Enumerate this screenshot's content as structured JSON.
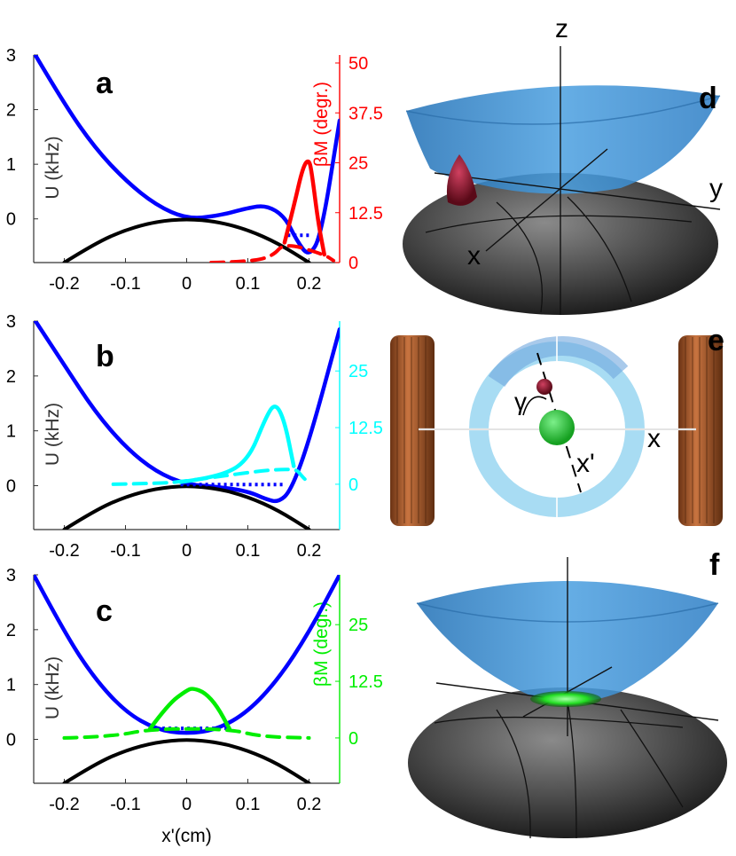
{
  "chart_data": [
    {
      "type": "line",
      "panel": "a",
      "xlabel": "",
      "ylabel": "U (kHz)",
      "y2label": "βM (degr.)",
      "xlim": [
        -0.25,
        0.25
      ],
      "ylim": [
        -0.8,
        3
      ],
      "y2lim": [
        0,
        52
      ],
      "xticks": [
        "-0.2",
        "-0.1",
        "0",
        "0.1",
        "0.2"
      ],
      "yticks": [
        "0",
        "1",
        "2",
        "3"
      ],
      "y2ticks": [
        "0",
        "12.5",
        "25",
        "37.5",
        "50"
      ],
      "accent_color": "#ff0000",
      "series": [
        {
          "role": "potential",
          "color": "#0000ff",
          "x": [
            -0.25,
            -0.2,
            -0.15,
            -0.1,
            -0.05,
            0,
            0.05,
            0.1,
            0.13,
            0.16,
            0.18,
            0.2,
            0.22,
            0.25
          ],
          "y": [
            3.05,
            2.1,
            1.3,
            0.7,
            0.25,
            0.0,
            0.05,
            0.2,
            0.25,
            0.05,
            -0.4,
            -0.7,
            -0.3,
            1.8
          ]
        },
        {
          "role": "gravity",
          "color": "#000000",
          "x": [
            -0.2,
            -0.15,
            -0.1,
            -0.05,
            0,
            0.05,
            0.1,
            0.15,
            0.2
          ],
          "y": [
            -0.8,
            -0.45,
            -0.2,
            -0.05,
            0,
            -0.05,
            -0.2,
            -0.45,
            -0.8
          ]
        },
        {
          "role": "level",
          "color": "#0000ff",
          "style": "dotted",
          "x": [
            0.165,
            0.205
          ],
          "y": [
            -0.3,
            -0.3
          ]
        },
        {
          "role": "tilt",
          "color": "#ff0000",
          "axis": "y2",
          "x": [
            0.16,
            0.175,
            0.19,
            0.2,
            0.205,
            0.215,
            0.225
          ],
          "y": [
            5,
            14,
            24,
            26,
            22,
            10,
            2
          ]
        },
        {
          "role": "tilt-tail",
          "color": "#ff0000",
          "style": "dashed",
          "axis": "y2",
          "x": [
            0.04,
            0.1,
            0.14,
            0.16,
            0.225,
            0.24
          ],
          "y": [
            0,
            0.2,
            1.5,
            5,
            2,
            0.5
          ]
        }
      ]
    },
    {
      "type": "line",
      "panel": "b",
      "xlabel": "",
      "ylabel": "U (kHz)",
      "xlim": [
        -0.25,
        0.25
      ],
      "ylim": [
        -0.8,
        3
      ],
      "y2lim": [
        -10,
        36
      ],
      "xticks": [
        "-0.2",
        "-0.1",
        "0",
        "0.1",
        "0.2"
      ],
      "yticks": [
        "0",
        "1",
        "2",
        "3"
      ],
      "y2ticks": [
        "0",
        "12.5",
        "25"
      ],
      "accent_color": "#00ffff",
      "series": [
        {
          "role": "potential",
          "color": "#0000ff",
          "x": [
            -0.25,
            -0.2,
            -0.15,
            -0.1,
            -0.05,
            0,
            0.05,
            0.1,
            0.13,
            0.15,
            0.17,
            0.2,
            0.25
          ],
          "y": [
            3.05,
            2.2,
            1.35,
            0.7,
            0.25,
            0.02,
            -0.02,
            -0.1,
            -0.25,
            -0.3,
            -0.1,
            0.8,
            2.85
          ]
        },
        {
          "role": "gravity",
          "color": "#000000",
          "x": [
            -0.2,
            -0.15,
            -0.1,
            -0.05,
            0,
            0.05,
            0.1,
            0.15,
            0.2
          ],
          "y": [
            -0.8,
            -0.45,
            -0.2,
            -0.05,
            0,
            -0.05,
            -0.2,
            -0.45,
            -0.8
          ]
        },
        {
          "role": "level",
          "color": "#0000ff",
          "style": "dotted",
          "x": [
            -0.01,
            0.16
          ],
          "y": [
            0.02,
            0.02
          ]
        },
        {
          "role": "tilt",
          "color": "#00ffff",
          "axis": "y2",
          "x": [
            -0.01,
            0.05,
            0.1,
            0.13,
            0.145,
            0.16,
            0.175
          ],
          "y": [
            0.5,
            1.5,
            5,
            15,
            18,
            14,
            4
          ]
        },
        {
          "role": "tilt-tail",
          "color": "#00ffff",
          "style": "dashed",
          "axis": "y2",
          "x": [
            -0.12,
            -0.05,
            -0.01,
            0.175,
            0.19,
            0.2
          ],
          "y": [
            0,
            0.2,
            0.5,
            4,
            1.5,
            0.3
          ]
        }
      ]
    },
    {
      "type": "line",
      "panel": "c",
      "xlabel": "x'(cm)",
      "ylabel": "U (kHz)",
      "y2label": "βM (degr.)",
      "xlim": [
        -0.25,
        0.25
      ],
      "ylim": [
        -0.8,
        3
      ],
      "y2lim": [
        -10,
        36
      ],
      "xticks": [
        "-0.2",
        "-0.1",
        "0",
        "0.1",
        "0.2"
      ],
      "yticks": [
        "0",
        "1",
        "2",
        "3"
      ],
      "y2ticks": [
        "0",
        "12.5",
        "25"
      ],
      "accent_color": "#00ee00",
      "series": [
        {
          "role": "potential",
          "color": "#0000ff",
          "x": [
            -0.25,
            -0.2,
            -0.15,
            -0.1,
            -0.05,
            0,
            0.05,
            0.1,
            0.15,
            0.2,
            0.25
          ],
          "y": [
            3.0,
            1.95,
            1.1,
            0.5,
            0.18,
            0.1,
            0.18,
            0.5,
            1.1,
            1.95,
            3.0
          ]
        },
        {
          "role": "gravity",
          "color": "#000000",
          "x": [
            -0.2,
            -0.15,
            -0.1,
            -0.05,
            0,
            0.05,
            0.1,
            0.15,
            0.2
          ],
          "y": [
            -0.8,
            -0.45,
            -0.2,
            -0.05,
            0,
            -0.05,
            -0.2,
            -0.45,
            -0.8
          ]
        },
        {
          "role": "level",
          "color": "#0000ff",
          "style": "dotted",
          "x": [
            -0.06,
            0.07
          ],
          "y": [
            0.2,
            0.2
          ]
        },
        {
          "role": "tilt",
          "color": "#00ee00",
          "axis": "y2",
          "x": [
            -0.06,
            -0.03,
            0,
            0.01,
            0.03,
            0.05,
            0.07
          ],
          "y": [
            2,
            7.5,
            10.5,
            11,
            10,
            7,
            2
          ]
        },
        {
          "role": "tilt-tail",
          "color": "#00ee00",
          "style": "dashed",
          "axis": "y2",
          "x": [
            -0.2,
            -0.12,
            -0.06,
            0.07,
            0.12,
            0.2
          ],
          "y": [
            0,
            0.3,
            2,
            2,
            0.3,
            0
          ]
        }
      ]
    }
  ],
  "panels": {
    "d": {
      "label": "d",
      "axes": {
        "z": "z",
        "y": "y",
        "x": "x"
      }
    },
    "e": {
      "label": "e",
      "axes": {
        "x": "x",
        "xprime": "x'",
        "angle": "γ"
      }
    },
    "f": {
      "label": "f"
    }
  },
  "colors": {
    "bowl": "#3d8fd1",
    "sphere": "#4a4a4a",
    "coil": "#b8602a",
    "ring": "#9fd8f2",
    "ball_green": "#22cc33",
    "ball_red": "#8b1a2a"
  }
}
